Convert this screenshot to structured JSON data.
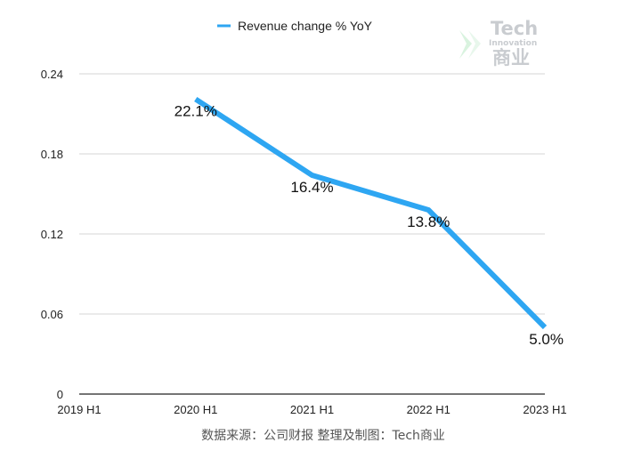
{
  "chart_data": {
    "type": "line",
    "categories": [
      "2019 H1",
      "2020 H1",
      "2021 H1",
      "2022 H1",
      "2023 H1"
    ],
    "series": [
      {
        "name": "Revenue change % YoY",
        "color": "#2ea6f2",
        "values": [
          null,
          0.221,
          0.164,
          0.138,
          0.05
        ],
        "labels": [
          "",
          "22.1%",
          "16.4%",
          "13.8%",
          "5.0%"
        ]
      }
    ],
    "yticks": [
      "0",
      "0.06",
      "0.12",
      "0.18",
      "0.24"
    ],
    "ylim": [
      0,
      0.24
    ],
    "grid": true,
    "legend_position": "top-center",
    "title": "",
    "xlabel": "",
    "ylabel": ""
  },
  "source_note": "数据来源：公司财报 整理及制图：Tech商业",
  "watermark": {
    "title": "Tech",
    "subtitle": "Innovation",
    "cn": "商业"
  }
}
